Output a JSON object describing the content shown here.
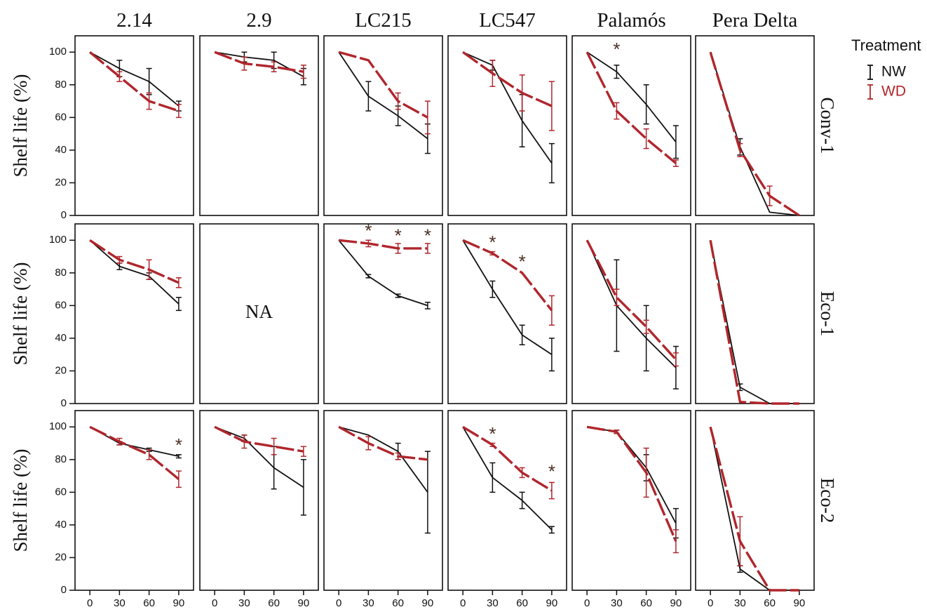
{
  "chart_data": {
    "type": "line",
    "columns": [
      "2.14",
      "2.9",
      "LC215",
      "LC547",
      "Palamós",
      "Pera Delta"
    ],
    "rows": [
      "Conv-1",
      "Eco-1",
      "Eco-2"
    ],
    "ylabel": "Shelf life (%)",
    "x": [
      0,
      30,
      60,
      90
    ],
    "x_ticks": [
      "0",
      "30",
      "60",
      "90"
    ],
    "xlim": [
      -15,
      105
    ],
    "ylim": [
      0,
      110
    ],
    "y_ticks": [
      "0",
      "20",
      "40",
      "60",
      "80",
      "100"
    ],
    "grid": false,
    "legend": {
      "title": "Treatment",
      "position": "top-right",
      "entries": [
        {
          "name": "NW",
          "color": "#111111",
          "style": "solid"
        },
        {
          "name": "WD",
          "color": "#b0262c",
          "style": "dashed"
        }
      ]
    },
    "na_text": "NA",
    "colors": {
      "NW": "#111111",
      "WD": "#b0262c",
      "star": "#4a2f22"
    },
    "panels": [
      {
        "row": "Conv-1",
        "col": "2.14",
        "series": [
          {
            "name": "NW",
            "values": [
              100,
              90,
              82,
              67
            ],
            "err": [
              0,
              5,
              8,
              3
            ]
          },
          {
            "name": "WD",
            "values": [
              100,
              85,
              70,
              64
            ],
            "err": [
              0,
              3,
              5,
              4
            ]
          }
        ],
        "stars": []
      },
      {
        "row": "Conv-1",
        "col": "2.9",
        "series": [
          {
            "name": "NW",
            "values": [
              100,
              97,
              95,
              85
            ],
            "err": [
              0,
              3,
              5,
              5
            ]
          },
          {
            "name": "WD",
            "values": [
              100,
              93,
              91,
              88
            ],
            "err": [
              0,
              4,
              3,
              4
            ]
          }
        ],
        "stars": []
      },
      {
        "row": "Conv-1",
        "col": "LC215",
        "series": [
          {
            "name": "NW",
            "values": [
              100,
              73,
              61,
              47
            ],
            "err": [
              0,
              9,
              6,
              9
            ]
          },
          {
            "name": "WD",
            "values": [
              100,
              95,
              70,
              60
            ],
            "err": [
              0,
              0,
              5,
              10
            ]
          }
        ],
        "stars": []
      },
      {
        "row": "Conv-1",
        "col": "LC547",
        "series": [
          {
            "name": "NW",
            "values": [
              100,
              92,
              58,
              32
            ],
            "err": [
              0,
              3,
              16,
              12
            ]
          },
          {
            "name": "WD",
            "values": [
              100,
              87,
              75,
              67
            ],
            "err": [
              0,
              8,
              11,
              15
            ]
          }
        ],
        "stars": []
      },
      {
        "row": "Conv-1",
        "col": "Palamós",
        "series": [
          {
            "name": "NW",
            "values": [
              100,
              88,
              68,
              45
            ],
            "err": [
              0,
              4,
              12,
              10
            ]
          },
          {
            "name": "WD",
            "values": [
              100,
              64,
              47,
              32
            ],
            "err": [
              0,
              5,
              6,
              2
            ]
          }
        ],
        "stars": [
          {
            "x": 30,
            "y": 101,
            "color": "#4a2f22"
          }
        ]
      },
      {
        "row": "Conv-1",
        "col": "Pera Delta",
        "series": [
          {
            "name": "NW",
            "values": [
              100,
              42,
              2,
              0
            ],
            "err": [
              0,
              5,
              0,
              0
            ]
          },
          {
            "name": "WD",
            "values": [
              100,
              40,
              12,
              0
            ],
            "err": [
              0,
              4,
              6,
              0
            ]
          }
        ],
        "stars": []
      },
      {
        "row": "Eco-1",
        "col": "2.14",
        "series": [
          {
            "name": "NW",
            "values": [
              100,
              84,
              78,
              61
            ],
            "err": [
              0,
              2,
              2,
              4
            ]
          },
          {
            "name": "WD",
            "values": [
              100,
              88,
              82,
              74
            ],
            "err": [
              0,
              2,
              6,
              3
            ]
          }
        ],
        "stars": []
      },
      {
        "row": "Eco-1",
        "col": "2.9",
        "na": true,
        "series": [],
        "stars": []
      },
      {
        "row": "Eco-1",
        "col": "LC215",
        "series": [
          {
            "name": "NW",
            "values": [
              100,
              78,
              66,
              60
            ],
            "err": [
              0,
              1,
              1,
              2
            ]
          },
          {
            "name": "WD",
            "values": [
              100,
              98,
              95,
              95
            ],
            "err": [
              0,
              2,
              3,
              3
            ]
          }
        ],
        "stars": [
          {
            "x": 30,
            "y": 105,
            "color": "#4a2f22"
          },
          {
            "x": 60,
            "y": 102,
            "color": "#4a2f22"
          },
          {
            "x": 90,
            "y": 102,
            "color": "#4a2f22"
          }
        ]
      },
      {
        "row": "Eco-1",
        "col": "LC547",
        "series": [
          {
            "name": "NW",
            "values": [
              100,
              70,
              42,
              30
            ],
            "err": [
              0,
              5,
              6,
              10
            ]
          },
          {
            "name": "WD",
            "values": [
              100,
              92,
              80,
              57
            ],
            "err": [
              0,
              1,
              0,
              9
            ]
          }
        ],
        "stars": [
          {
            "x": 30,
            "y": 98,
            "color": "#4a2f22"
          },
          {
            "x": 60,
            "y": 86,
            "color": "#4a2f22"
          }
        ]
      },
      {
        "row": "Eco-1",
        "col": "Palamós",
        "series": [
          {
            "name": "NW",
            "values": [
              100,
              60,
              40,
              22
            ],
            "err": [
              0,
              28,
              20,
              13
            ]
          },
          {
            "name": "WD",
            "values": [
              100,
              65,
              47,
              27
            ],
            "err": [
              0,
              5,
              4,
              4
            ]
          }
        ],
        "stars": []
      },
      {
        "row": "Eco-1",
        "col": "Pera Delta",
        "series": [
          {
            "name": "NW",
            "values": [
              100,
              10,
              0,
              0
            ],
            "err": [
              0,
              2,
              0,
              0
            ]
          },
          {
            "name": "WD",
            "values": [
              100,
              1,
              0,
              0
            ],
            "err": [
              0,
              0,
              0,
              0
            ]
          }
        ],
        "stars": []
      },
      {
        "row": "Eco-2",
        "col": "2.14",
        "series": [
          {
            "name": "NW",
            "values": [
              100,
              90,
              86,
              82
            ],
            "err": [
              0,
              1,
              1,
              1
            ]
          },
          {
            "name": "WD",
            "values": [
              100,
              91,
              83,
              68
            ],
            "err": [
              0,
              2,
              3,
              5
            ]
          }
        ],
        "stars": [
          {
            "x": 90,
            "y": 88,
            "color": "#4a2f22"
          }
        ]
      },
      {
        "row": "Eco-2",
        "col": "2.9",
        "series": [
          {
            "name": "NW",
            "values": [
              100,
              93,
              75,
              63
            ],
            "err": [
              0,
              2,
              13,
              17
            ]
          },
          {
            "name": "WD",
            "values": [
              100,
              91,
              88,
              85
            ],
            "err": [
              0,
              4,
              5,
              3
            ]
          }
        ],
        "stars": []
      },
      {
        "row": "Eco-2",
        "col": "LC215",
        "series": [
          {
            "name": "NW",
            "values": [
              100,
              95,
              85,
              60
            ],
            "err": [
              0,
              0,
              5,
              25
            ]
          },
          {
            "name": "WD",
            "values": [
              100,
              90,
              82,
              80
            ],
            "err": [
              0,
              4,
              2,
              0
            ]
          }
        ],
        "stars": []
      },
      {
        "row": "Eco-2",
        "col": "LC547",
        "series": [
          {
            "name": "NW",
            "values": [
              100,
              69,
              55,
              37
            ],
            "err": [
              0,
              9,
              5,
              2
            ]
          },
          {
            "name": "WD",
            "values": [
              100,
              89,
              72,
              61
            ],
            "err": [
              0,
              1,
              3,
              5
            ]
          }
        ],
        "stars": [
          {
            "x": 30,
            "y": 95,
            "color": "#4a2f22"
          },
          {
            "x": 90,
            "y": 72,
            "color": "#4a2f22"
          }
        ]
      },
      {
        "row": "Eco-2",
        "col": "Palamós",
        "series": [
          {
            "name": "NW",
            "values": [
              100,
              97,
              75,
              41
            ],
            "err": [
              0,
              1,
              8,
              9
            ]
          },
          {
            "name": "WD",
            "values": [
              100,
              97,
              72,
              30
            ],
            "err": [
              0,
              1,
              15,
              7
            ]
          }
        ],
        "stars": []
      },
      {
        "row": "Eco-2",
        "col": "Pera Delta",
        "series": [
          {
            "name": "NW",
            "values": [
              100,
              13,
              0,
              0
            ],
            "err": [
              0,
              2,
              0,
              0
            ]
          },
          {
            "name": "WD",
            "values": [
              100,
              30,
              0,
              0
            ],
            "err": [
              0,
              15,
              0,
              0
            ]
          }
        ],
        "stars": []
      }
    ]
  }
}
